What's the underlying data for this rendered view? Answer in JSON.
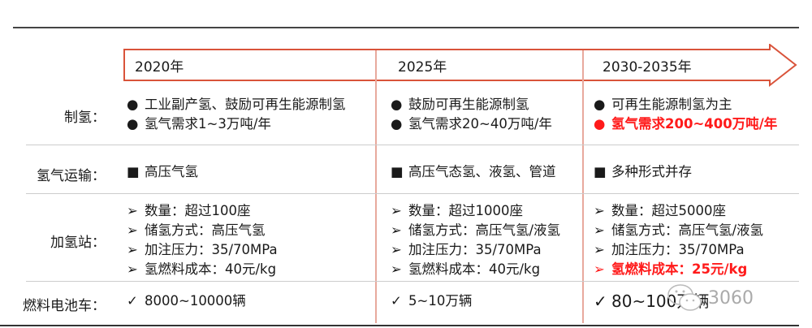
{
  "years": [
    "2020年",
    "2025年",
    "2030-2035年"
  ],
  "rows": [
    {
      "label": "制氢：",
      "cells": [
        {
          "marker": "●",
          "lines": [
            "工业副产氢、鼓励可再生能源制氢",
            "氢气需求1~3万吨/年"
          ]
        },
        {
          "marker": "●",
          "lines": [
            "鼓励可再生能源制氢",
            "氢气需求20~40万吨/年"
          ]
        },
        {
          "marker": "●",
          "lines": [
            "可再生能源制氢为主",
            "氢气需求200~400万吨/年"
          ],
          "highlight_line": 1
        }
      ]
    },
    {
      "label": "氢气运输：",
      "cells": [
        {
          "marker": "■",
          "lines": [
            "高压气氢"
          ]
        },
        {
          "marker": "■",
          "lines": [
            "高压气态氢、液氢、管道"
          ]
        },
        {
          "marker": "■",
          "lines": [
            "多种形式并存"
          ]
        }
      ]
    },
    {
      "label": "加氢站：",
      "cells": [
        {
          "marker": "➢",
          "lines": [
            "数量：超过100座",
            "储氢方式：高压气氢",
            "加注压力：35/70MPa",
            "氢燃料成本：40元/kg"
          ]
        },
        {
          "marker": "➢",
          "lines": [
            "数量：超过1000座",
            "储氢方式：高压气氢/液氢",
            "加注压力：35/70MPa",
            "氢燃料成本：40元/kg"
          ]
        },
        {
          "marker": "➢",
          "lines": [
            "数量：超过5000座",
            "储氢方式：高压气氢/液氢",
            "加注压力：35/70MPa",
            "氢燃料成本：25元/kg"
          ],
          "highlight_line": 3
        }
      ]
    },
    {
      "label": "燃料电池车：",
      "cells": [
        {
          "marker": "✓",
          "lines": [
            "8000~10000辆"
          ]
        },
        {
          "marker": "✓",
          "lines": [
            "5~10万辆"
          ]
        },
        {
          "marker": "✓",
          "lines": [
            "80~100万辆"
          ]
        }
      ]
    }
  ],
  "watermark": {
    "text": "3060",
    "icon": "wechat-icon"
  },
  "colors": {
    "arrow": "#d9533a",
    "highlight": "#ff1a1a",
    "divider": "#e8a99d"
  }
}
